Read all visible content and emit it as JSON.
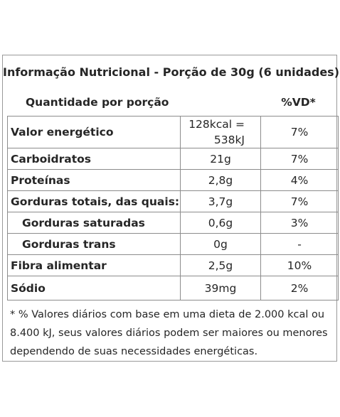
{
  "title": "Informação Nutricional - Porção de 30g (6 unidades)",
  "header": {
    "quantity_label": "Quantidade por porção",
    "vd_label": "%VD*"
  },
  "rows": [
    {
      "name": "Valor energético",
      "amount_line1": "128kcal =",
      "amount_line2": "538kJ",
      "vd": "7%"
    },
    {
      "name": "Carboidratos",
      "amount": "21g",
      "vd": "7%"
    },
    {
      "name": "Proteínas",
      "amount": "2,8g",
      "vd": "4%"
    },
    {
      "name": "Gorduras totais, das quais:",
      "amount": "3,7g",
      "vd": "7%"
    },
    {
      "name": "Gorduras saturadas",
      "amount": "0,6g",
      "vd": "3%"
    },
    {
      "name": "Gorduras trans",
      "amount": "0g",
      "vd": "-"
    },
    {
      "name": "Fibra alimentar",
      "amount": "2,5g",
      "vd": "10%"
    },
    {
      "name": "Sódio",
      "amount": "39mg",
      "vd": "2%"
    }
  ],
  "footnote": "* % Valores diários com base em uma dieta de 2.000 kcal ou 8.400 kJ, seus valores diários podem ser maiores ou menores dependendo de suas necessidades energéticas."
}
